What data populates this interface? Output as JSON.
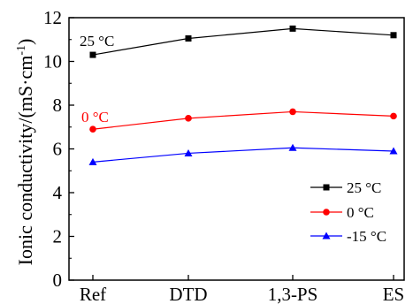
{
  "chart_data": {
    "type": "line",
    "categories": [
      "Ref",
      "DTD",
      "1,3-PS",
      "ES"
    ],
    "ylabel": "Ionic conductivity/(mS·cm",
    "ylabel_sup": "-1",
    "ylabel_close": ")",
    "ylim": [
      0,
      12
    ],
    "yticks": [
      "0",
      "2",
      "4",
      "6",
      "8",
      "10",
      "12"
    ],
    "series": [
      {
        "name": "25 °C",
        "values": [
          10.3,
          11.05,
          11.5,
          11.2
        ],
        "color": "#000000",
        "marker": "square"
      },
      {
        "name": "0 °C",
        "values": [
          6.9,
          7.4,
          7.7,
          7.5
        ],
        "color": "#ff0000",
        "marker": "circle"
      },
      {
        "name": "-15 °C",
        "values": [
          5.4,
          5.8,
          6.05,
          5.9
        ],
        "color": "#0000ff",
        "marker": "triangle"
      }
    ],
    "annotations": [
      {
        "text": "25 °C",
        "series": 0
      },
      {
        "text": "0 °C",
        "series": 1
      }
    ],
    "legend_position": "bottom-right",
    "grid": false
  }
}
